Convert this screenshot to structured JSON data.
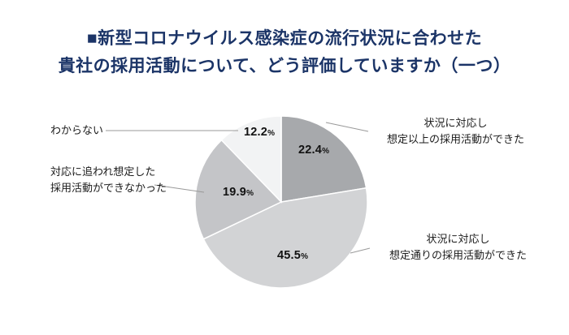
{
  "title": {
    "line1": "■新型コロナウイルス感染症の流行状況に合わせた",
    "line2": "貴社の採用活動について、どう評価していますか（一つ）"
  },
  "colors": {
    "title_text": "#1b3467",
    "leader_line": "#999999",
    "percent_text": "#121212",
    "slice_divider": "#ffffff"
  },
  "chart_data": {
    "type": "pie",
    "title": "新型コロナウイルス感染症の流行状況に合わせた貴社の採用活動について、どう評価していますか（一つ）",
    "unit": "%",
    "start_angle_deg": 0,
    "direction": "clockwise",
    "total": 100.0,
    "slices": [
      {
        "label": "状況に対応し想定以上の採用活動ができた",
        "value": 22.4,
        "color": "#a7a9ac",
        "callout_lines": [
          "状況に対応し",
          "想定以上の採用活動ができた"
        ],
        "callout_side": "right"
      },
      {
        "label": "状況に対応し想定通りの採用活動ができた",
        "value": 45.5,
        "color": "#d2d3d5",
        "callout_lines": [
          "状況に対応し",
          "想定通りの採用活動ができた"
        ],
        "callout_side": "right"
      },
      {
        "label": "対応に追われ想定した採用活動ができなかった",
        "value": 19.9,
        "color": "#c4c5c8",
        "callout_lines": [
          "対応に追われ想定した",
          "採用活動ができなかった"
        ],
        "callout_side": "left"
      },
      {
        "label": "わからない",
        "value": 12.2,
        "color": "#f2f3f4",
        "callout_lines": [
          "わからない"
        ],
        "callout_side": "left"
      }
    ]
  }
}
